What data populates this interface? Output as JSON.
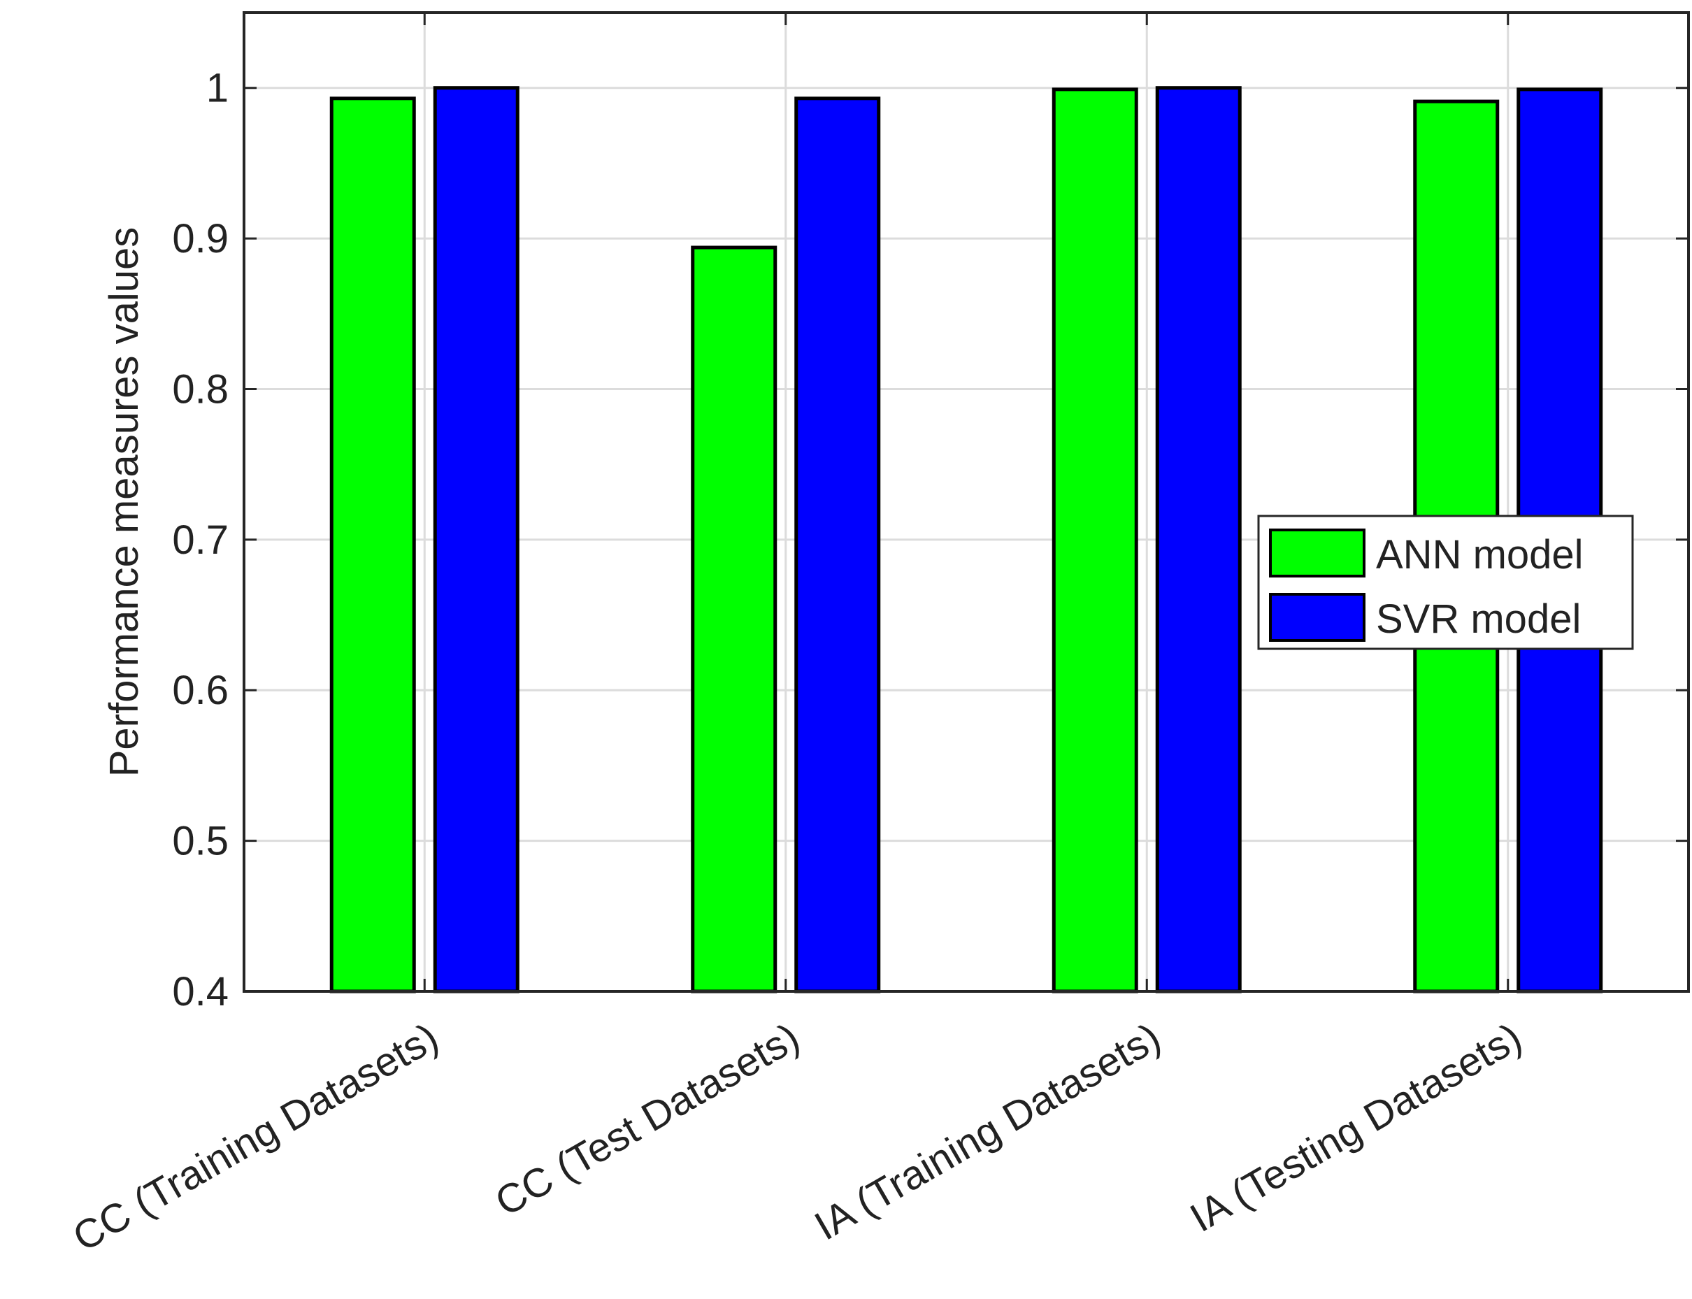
{
  "chart_data": {
    "type": "bar",
    "title": "",
    "xlabel": "",
    "ylabel": "Performance measures values",
    "ylim": [
      0.4,
      1.05
    ],
    "yticks": [
      0.4,
      0.5,
      0.6,
      0.7,
      0.8,
      0.9,
      1
    ],
    "ytick_labels": [
      "0.4",
      "0.5",
      "0.6",
      "0.7",
      "0.8",
      "0.9",
      "1"
    ],
    "grid": true,
    "legend_position": "middle-right",
    "categories": [
      "CC (Training Datasets)",
      "CC (Test Datasets)",
      "IA (Training Datasets)",
      "IA (Testing Datasets)"
    ],
    "series": [
      {
        "name": "ANN model",
        "color": "#00ff00",
        "values": [
          0.993,
          0.894,
          0.999,
          0.991
        ]
      },
      {
        "name": "SVR model",
        "color": "#0000ff",
        "values": [
          1.0,
          0.993,
          1.0,
          0.999
        ]
      }
    ]
  }
}
